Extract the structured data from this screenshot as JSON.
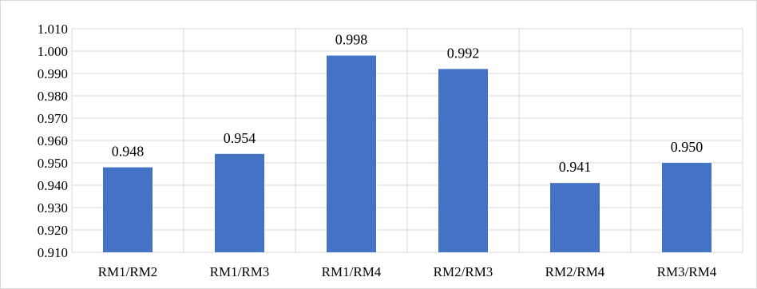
{
  "chart_data": {
    "type": "bar",
    "title": "",
    "xlabel": "",
    "ylabel": "",
    "categories": [
      "RM1/RM2",
      "RM1/RM3",
      "RM1/RM4",
      "RM2/RM3",
      "RM2/RM4",
      "RM3/RM4"
    ],
    "values": [
      0.948,
      0.954,
      0.998,
      0.992,
      0.941,
      0.95
    ],
    "data_labels": [
      "0.948",
      "0.954",
      "0.998",
      "0.992",
      "0.941",
      "0.950"
    ],
    "ylim": [
      0.91,
      1.01
    ],
    "y_ticks": [
      "0.910",
      "0.920",
      "0.930",
      "0.940",
      "0.950",
      "0.960",
      "0.970",
      "0.980",
      "0.990",
      "1.000",
      "1.010"
    ],
    "grid": true,
    "legend": "none",
    "bar_color": "#4472c4",
    "grid_color": "#d9d9d9"
  }
}
